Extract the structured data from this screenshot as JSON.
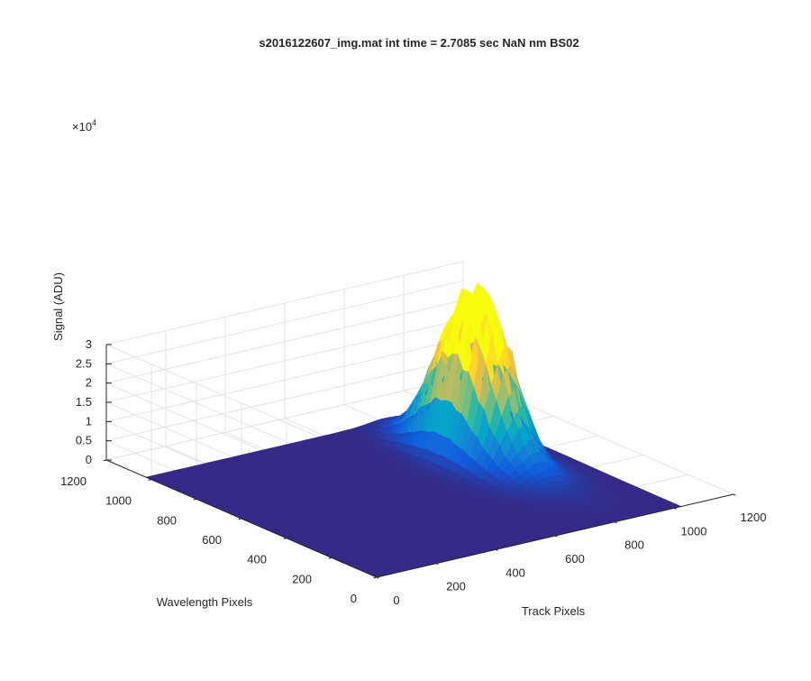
{
  "chart_data": {
    "type": "surface",
    "title": "s2016122607_img.mat int time = 2.7085 sec  NaN nm BS02",
    "xlabel": "Track Pixels",
    "ylabel": "Wavelength Pixels",
    "zlabel": "Signal (ADU)",
    "z_exponent_label": "×10",
    "z_exponent": "4",
    "xlim": [
      0,
      1200
    ],
    "ylim": [
      0,
      1200
    ],
    "zlim": [
      0,
      30000
    ],
    "x_ticks": [
      "0",
      "200",
      "400",
      "600",
      "800",
      "1000",
      "1200"
    ],
    "y_ticks": [
      "0",
      "200",
      "400",
      "600",
      "800",
      "1000",
      "1200"
    ],
    "z_ticks": [
      "0",
      "0.5",
      "1",
      "1.5",
      "2",
      "2.5",
      "3"
    ],
    "z_tick_values": [
      0,
      5000,
      10000,
      15000,
      20000,
      25000,
      30000
    ],
    "grid": true,
    "colormap": "parula",
    "colormap_stops": [
      "#352a87",
      "#0f5cdd",
      "#1481d6",
      "#06a4ca",
      "#2eb7a4",
      "#87bf77",
      "#d1bb59",
      "#fec832",
      "#f9fb0e"
    ],
    "data_extent": {
      "x": [
        0,
        1024
      ],
      "y": [
        0,
        1024
      ]
    },
    "peaks": [
      {
        "x": 850,
        "y": 610,
        "z": 26500
      },
      {
        "x": 795,
        "y": 690,
        "z": 26000
      }
    ]
  }
}
